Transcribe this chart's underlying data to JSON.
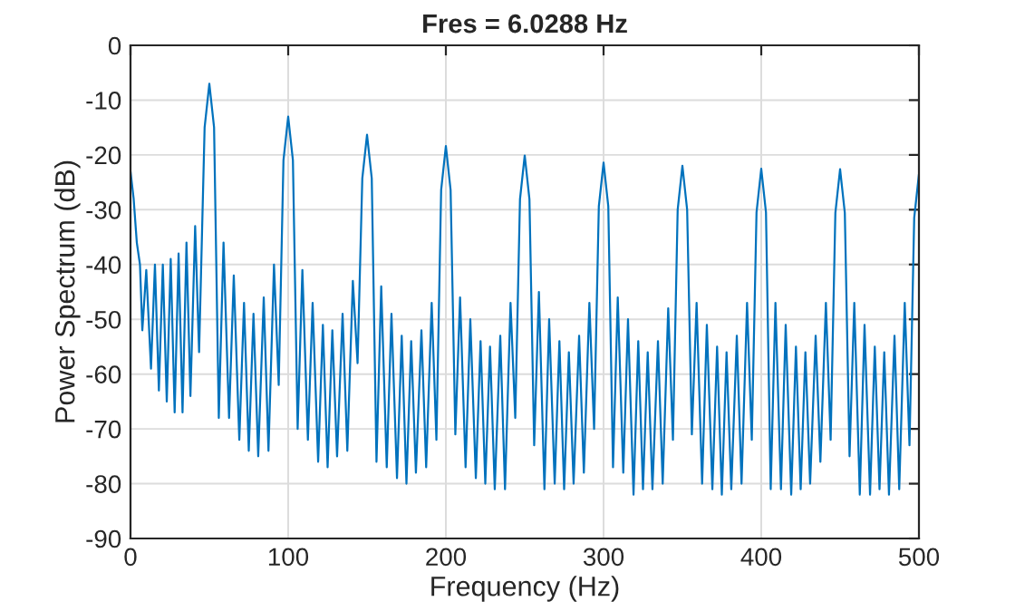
{
  "chart_data": {
    "type": "line",
    "title": "Fres = 6.0288 Hz",
    "xlabel": "Frequency (Hz)",
    "ylabel": "Power Spectrum (dB)",
    "x": [
      0,
      2,
      4,
      6,
      7.5,
      10,
      13,
      15.5,
      18,
      20.5,
      23,
      25.5,
      28,
      30.5,
      33,
      35.5,
      38,
      41,
      43.5,
      47,
      50,
      53,
      56,
      59,
      62.5,
      65.5,
      69,
      72,
      75,
      78,
      81,
      84.5,
      87.5,
      91,
      94,
      97,
      100,
      103,
      106,
      109,
      112.5,
      115.5,
      119,
      122,
      125,
      128,
      131,
      134.5,
      137.5,
      141,
      144,
      147,
      150,
      153,
      156,
      159,
      162.5,
      165.5,
      169,
      172,
      175,
      178,
      181,
      184.5,
      187.5,
      191,
      194,
      197,
      200,
      203,
      206,
      209,
      212.5,
      215.5,
      219,
      222,
      225,
      228,
      231,
      234.5,
      237.5,
      241,
      244,
      247,
      250,
      253,
      256,
      259,
      262.5,
      265.5,
      269,
      272,
      275,
      278,
      281,
      284.5,
      287.5,
      291,
      294,
      297,
      300,
      303,
      306,
      309,
      312.5,
      315.5,
      319,
      322,
      325,
      328,
      331,
      334.5,
      337.5,
      341,
      344,
      347,
      350,
      353,
      356,
      359,
      362.5,
      365.5,
      369,
      372,
      375,
      378,
      381,
      384.5,
      387.5,
      391,
      394,
      397,
      400,
      403,
      406,
      409,
      412.5,
      415.5,
      419,
      422,
      425,
      428,
      431,
      434.5,
      437.5,
      441,
      444,
      447,
      450,
      453,
      456,
      459,
      462.5,
      465.5,
      469,
      472,
      475,
      478,
      481,
      484.5,
      487.5,
      491,
      494,
      497,
      500
    ],
    "series": [
      {
        "color": "#0072bd",
        "values": [
          -23,
          -28,
          -36,
          -40,
          -52,
          -41,
          -59,
          -40,
          -63,
          -40,
          -65,
          -39,
          -67,
          -38,
          -67,
          -36,
          -64,
          -33,
          -56,
          -15,
          -7,
          -15,
          -68,
          -36,
          -68,
          -42,
          -72,
          -47,
          -74,
          -49,
          -75,
          -46,
          -74,
          -40,
          -62,
          -21,
          -13,
          -21,
          -70,
          -41,
          -72,
          -47,
          -76,
          -51,
          -77,
          -52,
          -75,
          -49,
          -74,
          -43,
          -58,
          -24.3,
          -16.3,
          -24.3,
          -76,
          -44,
          -77,
          -49,
          -79,
          -53,
          -80,
          -54,
          -78,
          -52,
          -77,
          -47,
          -72,
          -26.4,
          -18.4,
          -26.4,
          -71,
          -46,
          -77,
          -50,
          -79,
          -54,
          -80,
          -55,
          -81,
          -53,
          -81,
          -47,
          -68,
          -28.1,
          -20.1,
          -28.1,
          -73,
          -45,
          -81,
          -50,
          -80,
          -54,
          -81,
          -56,
          -80,
          -53,
          -78,
          -47,
          -70,
          -29.4,
          -21.4,
          -29.4,
          -77,
          -46,
          -78,
          -50,
          -82,
          -54,
          -81,
          -56,
          -81,
          -54,
          -80,
          -48,
          -72,
          -30,
          -22,
          -30,
          -71,
          -47,
          -80,
          -51,
          -81,
          -55,
          -82,
          -56,
          -81,
          -53,
          -80,
          -47,
          -72,
          -30.5,
          -22.5,
          -30.5,
          -81,
          -47,
          -81,
          -51,
          -82,
          -55,
          -81,
          -56,
          -80,
          -53,
          -76,
          -47,
          -72,
          -30.6,
          -22.6,
          -30.6,
          -75,
          -47,
          -82,
          -51,
          -82,
          -55,
          -81,
          -56,
          -82,
          -53,
          -81,
          -47,
          -73,
          -31.5,
          -23.5
        ]
      }
    ],
    "xlim": [
      0,
      500
    ],
    "ylim": [
      -90,
      0
    ],
    "xticks": [
      0,
      100,
      200,
      300,
      400,
      500
    ],
    "yticks": [
      -90,
      -80,
      -70,
      -60,
      -50,
      -40,
      -30,
      -20,
      -10,
      0
    ],
    "grid": true,
    "legend": false
  }
}
